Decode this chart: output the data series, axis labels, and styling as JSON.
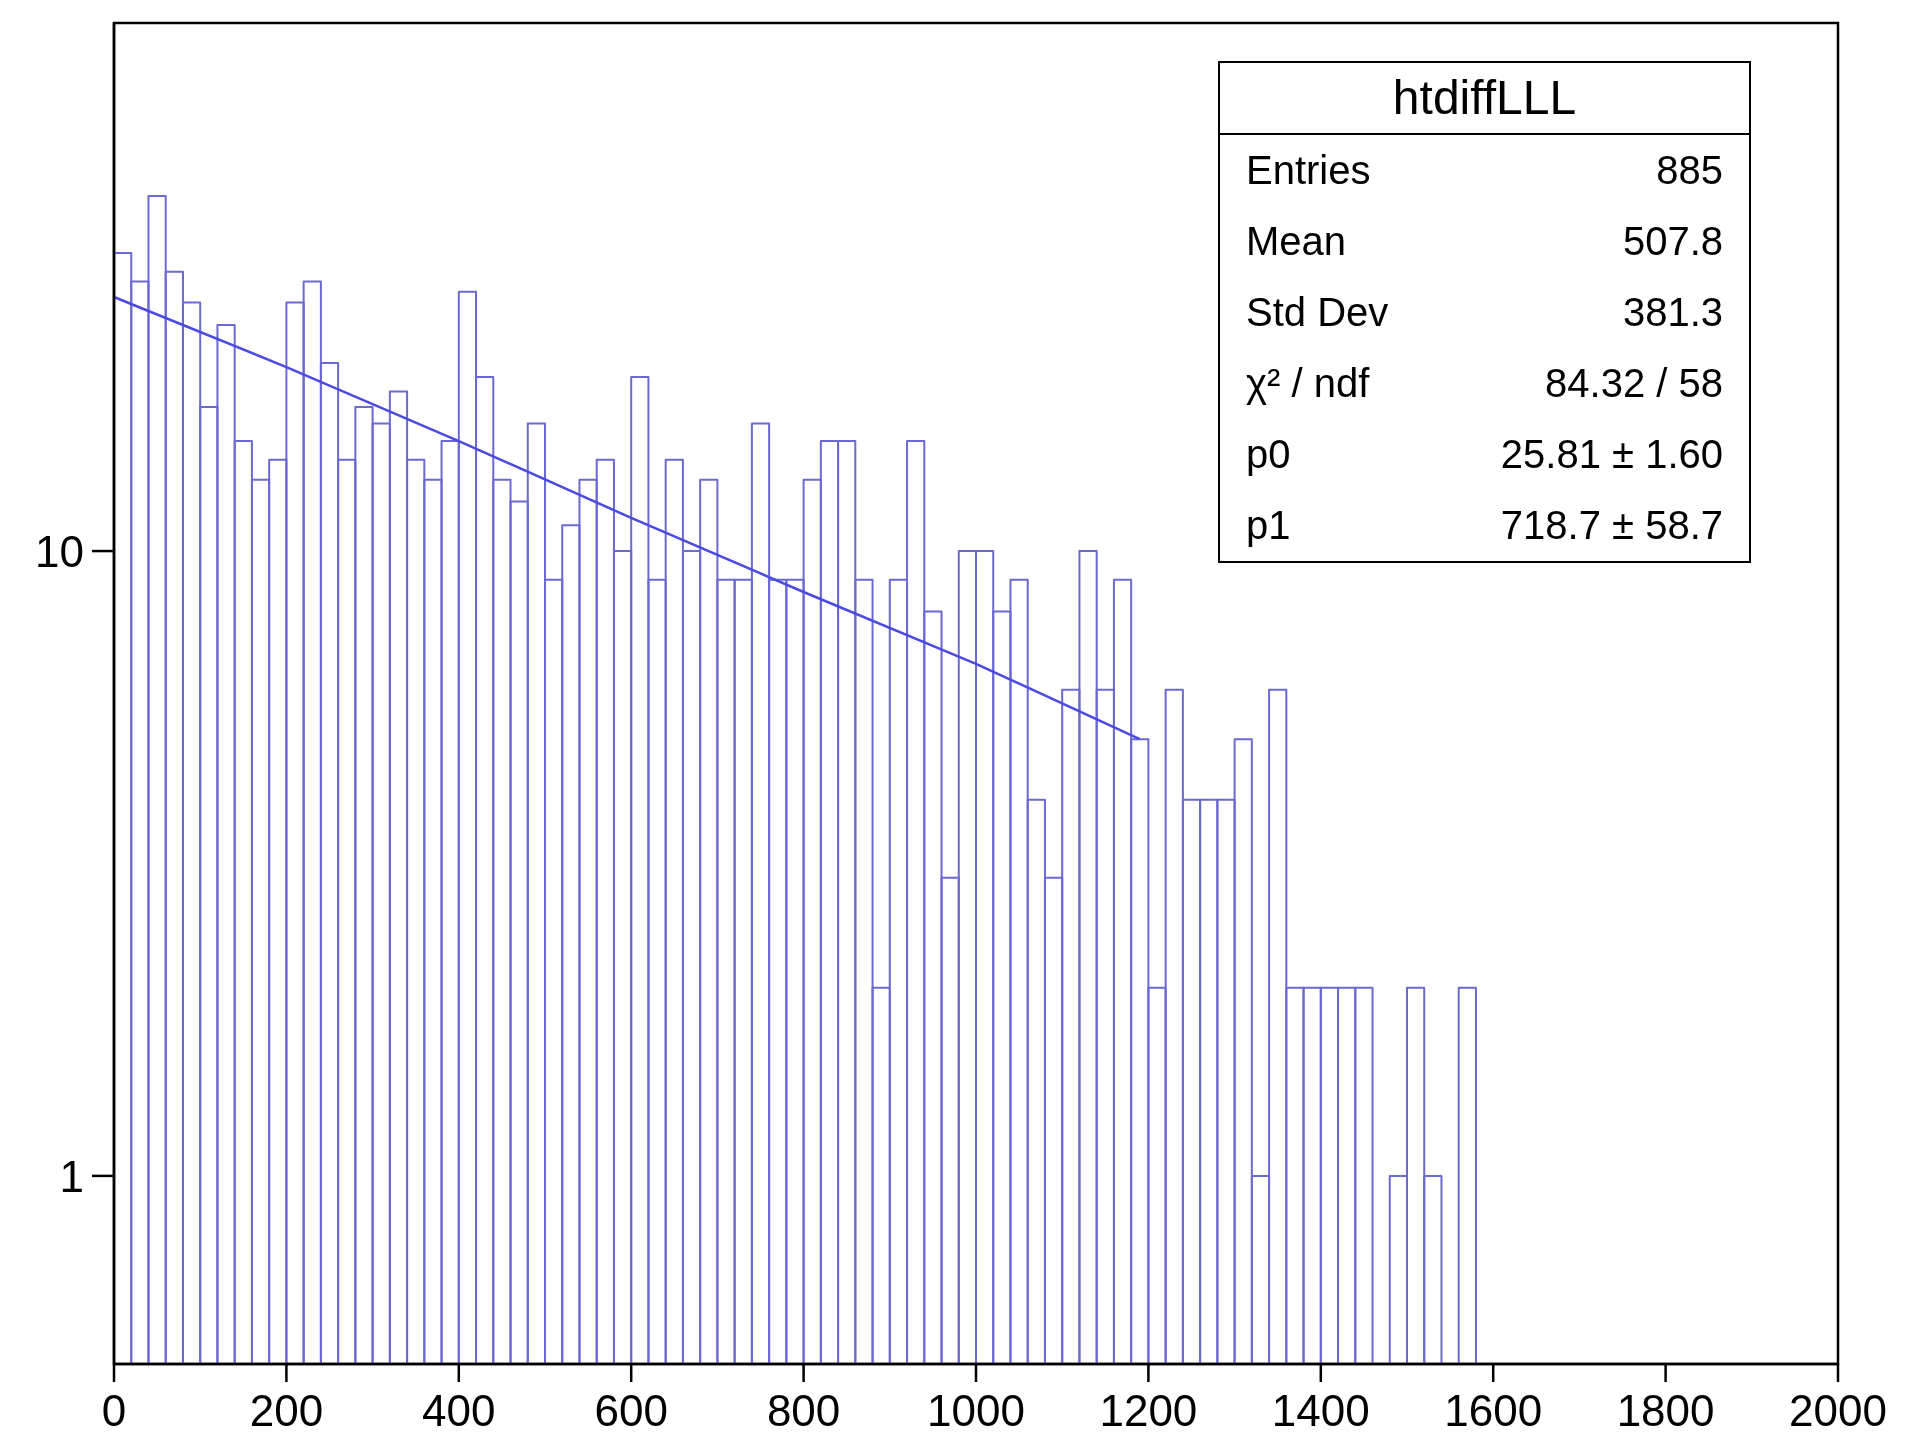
{
  "chart_data": {
    "type": "histogram",
    "title": "htdiffLLL",
    "annotations": [
      "Entries",
      "885",
      "Mean",
      "507.8",
      "Std Dev",
      "381.3",
      "χ² / ndf",
      "84.32 / 58",
      "p0",
      "25.81 ± 1.60",
      "p1",
      "718.7 ± 58.7"
    ],
    "bins": [
      0,
      20,
      40,
      60,
      80,
      100,
      120,
      140,
      160,
      180,
      200,
      220,
      240,
      260,
      280,
      300,
      320,
      340,
      360,
      380,
      400,
      420,
      440,
      460,
      480,
      500,
      520,
      540,
      560,
      580,
      600,
      620,
      640,
      660,
      680,
      700,
      720,
      740,
      760,
      780,
      800,
      820,
      840,
      860,
      880,
      900,
      920,
      940,
      960,
      980,
      1000,
      1020,
      1040,
      1060,
      1080,
      1100,
      1120,
      1140,
      1160,
      1180,
      1200,
      1220,
      1240,
      1260,
      1280,
      1300,
      1320,
      1340,
      1360,
      1380,
      1400,
      1420,
      1440,
      1460,
      1480,
      1500,
      1520,
      1540,
      1560,
      1580
    ],
    "series": [
      {
        "color": "#6a6ad2",
        "values": [
          30,
          27,
          37,
          28,
          25,
          17,
          23,
          15,
          13,
          14,
          25,
          27,
          20,
          14,
          17,
          16,
          18,
          14,
          13,
          15,
          26,
          19,
          13,
          12,
          16,
          9,
          11,
          13,
          14,
          10,
          19,
          9,
          14,
          10,
          13,
          9,
          9,
          16,
          9,
          9,
          13,
          15,
          15,
          9,
          2,
          9,
          15,
          8,
          3,
          10,
          10,
          8,
          9,
          4,
          3,
          6,
          10,
          6,
          9,
          5,
          2,
          6,
          4,
          4,
          4,
          5,
          1,
          6,
          2,
          2,
          2,
          2,
          2,
          null,
          1,
          2,
          1,
          null,
          2
        ]
      },
      {
        "type": "line",
        "color": "#4b4be0",
        "x": [
          0,
          200,
          400,
          600,
          800,
          1000,
          1190
        ],
        "values": [
          25.5,
          19.7,
          15.0,
          11.3,
          8.6,
          6.6,
          5.0
        ]
      }
    ],
    "xlim": [
      0,
      2000
    ],
    "xticks": [
      0,
      200,
      400,
      600,
      800,
      1000,
      1200,
      1400,
      1600,
      1800,
      2000
    ],
    "ylim": [
      0.5,
      70
    ],
    "yticks": [
      1,
      10
    ],
    "log": true
  }
}
